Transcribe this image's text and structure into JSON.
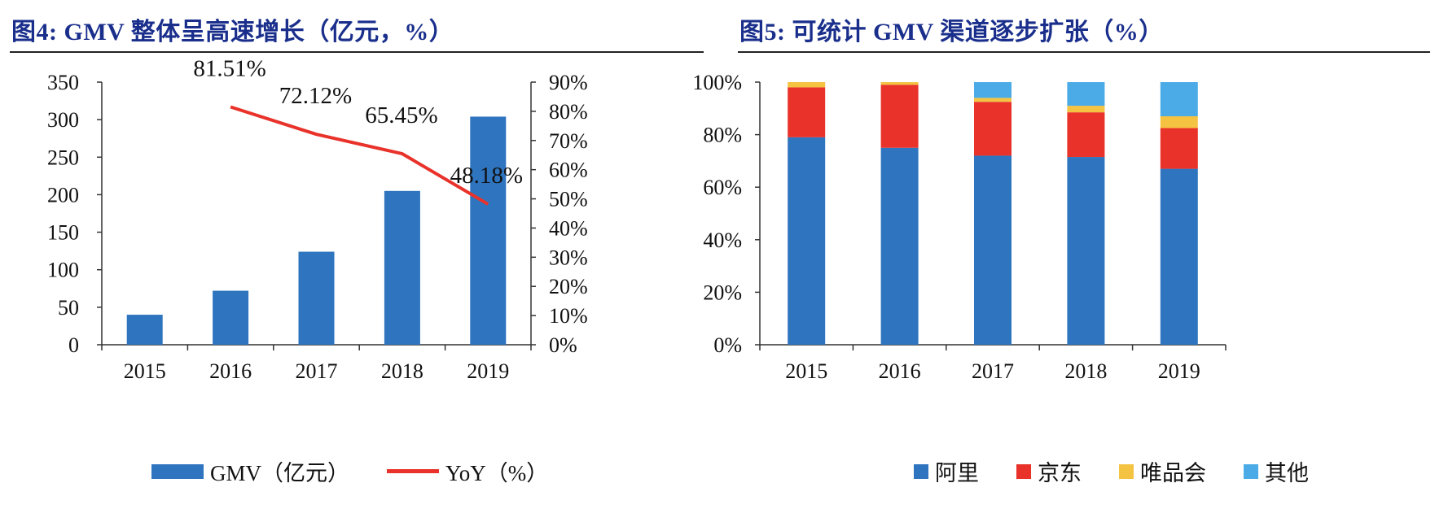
{
  "figures": [
    {
      "title": "图4:  GMV 整体呈高速增长（亿元，%）",
      "legend": [
        {
          "label": "GMV（亿元）",
          "color": "#2e74bf",
          "kind": "bar"
        },
        {
          "label": "YoY（%）",
          "color": "#e8322a",
          "kind": "line"
        }
      ]
    },
    {
      "title": "图5:  可统计 GMV 渠道逐步扩张（%）",
      "legend": [
        {
          "label": "阿里",
          "color": "#2e74bf"
        },
        {
          "label": "京东",
          "color": "#e8322a"
        },
        {
          "label": "唯品会",
          "color": "#f5c342"
        },
        {
          "label": "其他",
          "color": "#4aabe6"
        }
      ]
    }
  ],
  "chart_data": [
    {
      "type": "bar",
      "categories": [
        "2015",
        "2016",
        "2017",
        "2018",
        "2019"
      ],
      "series": [
        {
          "name": "GMV（亿元）",
          "type": "bar",
          "axis": "left",
          "color": "#2e74bf",
          "values": [
            40,
            72,
            124,
            205,
            304
          ]
        },
        {
          "name": "YoY（%）",
          "type": "line",
          "axis": "right",
          "color": "#e8322a",
          "values": [
            null,
            81.51,
            72.12,
            65.45,
            48.18
          ],
          "labels": [
            "",
            "81.51%",
            "72.12%",
            "65.45%",
            "48.18%"
          ]
        }
      ],
      "ylim": [
        0,
        350
      ],
      "yticks": [
        "0",
        "50",
        "100",
        "150",
        "200",
        "250",
        "300",
        "350"
      ],
      "y2lim": [
        0,
        90
      ],
      "y2ticks": [
        "0%",
        "10%",
        "20%",
        "30%",
        "40%",
        "50%",
        "60%",
        "70%",
        "80%",
        "90%"
      ],
      "grid": false,
      "legend_position": "bottom"
    },
    {
      "type": "bar",
      "stacked": true,
      "categories": [
        "2015",
        "2016",
        "2017",
        "2018",
        "2019"
      ],
      "series": [
        {
          "name": "阿里",
          "color": "#2e74bf",
          "values": [
            79,
            75,
            72,
            71.5,
            67
          ]
        },
        {
          "name": "京东",
          "color": "#e8322a",
          "values": [
            19,
            24,
            20.5,
            17,
            15.5
          ]
        },
        {
          "name": "唯品会",
          "color": "#f5c342",
          "values": [
            2,
            1,
            1.5,
            2.5,
            4.5
          ]
        },
        {
          "name": "其他",
          "color": "#4aabe6",
          "values": [
            0,
            0,
            6,
            9,
            13
          ]
        }
      ],
      "ylim": [
        0,
        100
      ],
      "yticks": [
        "0%",
        "20%",
        "40%",
        "60%",
        "80%",
        "100%"
      ],
      "grid": false,
      "legend_position": "bottom"
    }
  ]
}
